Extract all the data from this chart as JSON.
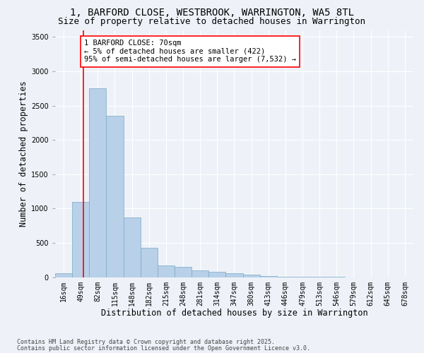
{
  "title": "1, BARFORD CLOSE, WESTBROOK, WARRINGTON, WA5 8TL",
  "subtitle": "Size of property relative to detached houses in Warrington",
  "xlabel": "Distribution of detached houses by size in Warrington",
  "ylabel": "Number of detached properties",
  "footnote1": "Contains HM Land Registry data © Crown copyright and database right 2025.",
  "footnote2": "Contains public sector information licensed under the Open Government Licence v3.0.",
  "bin_labels": [
    "16sqm",
    "49sqm",
    "82sqm",
    "115sqm",
    "148sqm",
    "182sqm",
    "215sqm",
    "248sqm",
    "281sqm",
    "314sqm",
    "347sqm",
    "380sqm",
    "413sqm",
    "446sqm",
    "479sqm",
    "513sqm",
    "546sqm",
    "579sqm",
    "612sqm",
    "645sqm",
    "678sqm"
  ],
  "bin_left_edges": [
    0,
    33,
    66,
    99,
    132,
    165,
    198,
    231,
    264,
    297,
    330,
    363,
    396,
    429,
    462,
    495,
    528,
    561,
    594,
    627,
    660
  ],
  "bar_heights": [
    55,
    1100,
    2750,
    2350,
    870,
    430,
    175,
    150,
    105,
    80,
    55,
    35,
    15,
    8,
    6,
    5,
    3,
    2,
    1,
    1,
    1
  ],
  "bin_width": 33,
  "bar_color": "#b8d0e8",
  "bar_edge_color": "#7aaac8",
  "red_line_x": 1.65,
  "annotation_text": "1 BARFORD CLOSE: 70sqm\n← 5% of detached houses are smaller (422)\n95% of semi-detached houses are larger (7,532) →",
  "annotation_box_color": "white",
  "annotation_border_color": "red",
  "ylim": [
    0,
    3600
  ],
  "xlim_left": 0,
  "xlim_right": 21,
  "background_color": "#eef2f8",
  "grid_color": "white",
  "title_fontsize": 10,
  "subtitle_fontsize": 9,
  "axis_label_fontsize": 8.5,
  "tick_fontsize": 7,
  "annotation_fontsize": 7.5
}
